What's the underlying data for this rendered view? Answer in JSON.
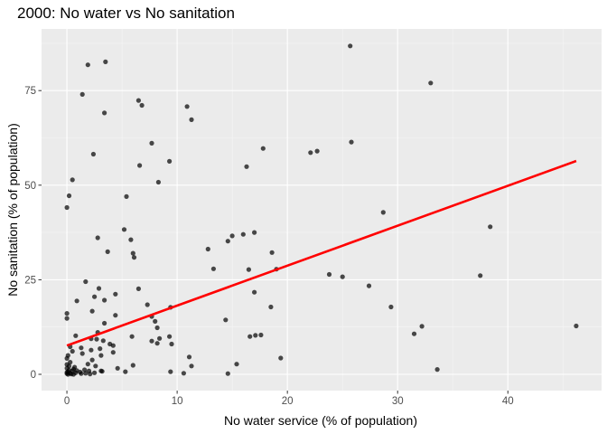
{
  "chart_data": {
    "type": "scatter",
    "title": "2000: No water vs No sanitation",
    "xlabel": "No water service (% of population)",
    "ylabel": "No sanitation (% of population)",
    "xlim": [
      -2.3,
      48.5
    ],
    "ylim": [
      -4.3,
      91.3
    ],
    "x_ticks": [
      0,
      10,
      20,
      30,
      40
    ],
    "x_tick_labels": [
      "0",
      "10",
      "20",
      "30",
      "40"
    ],
    "y_ticks": [
      0,
      25,
      50,
      75
    ],
    "y_tick_labels": [
      "0",
      "25",
      "50",
      "75"
    ],
    "grid": true,
    "legend": "none",
    "colors": {
      "panel": "#ebebeb",
      "grid_major": "#ffffff",
      "grid_minor": "#f5f5f5",
      "points": "#000000",
      "trend": "#ff0000"
    },
    "trend_line": {
      "x": [
        0,
        46.2
      ],
      "y": [
        7.6,
        56.4
      ]
    },
    "points": [
      [
        25.7,
        86.8
      ],
      [
        1.9,
        81.8
      ],
      [
        3.5,
        82.6
      ],
      [
        33.0,
        77.0
      ],
      [
        1.4,
        74.0
      ],
      [
        6.5,
        72.4
      ],
      [
        6.8,
        71.1
      ],
      [
        10.9,
        70.8
      ],
      [
        3.4,
        69.1
      ],
      [
        11.3,
        67.3
      ],
      [
        7.7,
        61.1
      ],
      [
        25.8,
        61.4
      ],
      [
        17.8,
        59.7
      ],
      [
        22.7,
        59.0
      ],
      [
        22.1,
        58.6
      ],
      [
        2.4,
        58.2
      ],
      [
        9.3,
        56.3
      ],
      [
        6.6,
        55.2
      ],
      [
        16.3,
        54.9
      ],
      [
        0.5,
        51.4
      ],
      [
        8.3,
        50.8
      ],
      [
        0.2,
        47.2
      ],
      [
        5.4,
        47.0
      ],
      [
        0.0,
        44.1
      ],
      [
        28.7,
        42.8
      ],
      [
        38.4,
        39.0
      ],
      [
        5.2,
        38.3
      ],
      [
        15.0,
        36.6
      ],
      [
        16.0,
        37.0
      ],
      [
        17.0,
        37.5
      ],
      [
        2.8,
        36.1
      ],
      [
        5.8,
        35.6
      ],
      [
        14.6,
        35.2
      ],
      [
        12.8,
        33.1
      ],
      [
        3.7,
        32.4
      ],
      [
        18.6,
        32.2
      ],
      [
        6.0,
        32.0
      ],
      [
        6.1,
        30.9
      ],
      [
        16.5,
        27.7
      ],
      [
        19.0,
        27.8
      ],
      [
        13.3,
        27.9
      ],
      [
        23.8,
        26.4
      ],
      [
        25.0,
        25.8
      ],
      [
        37.5,
        26.1
      ],
      [
        1.7,
        24.5
      ],
      [
        27.4,
        23.4
      ],
      [
        2.9,
        22.7
      ],
      [
        6.5,
        22.6
      ],
      [
        4.4,
        21.2
      ],
      [
        17.0,
        21.7
      ],
      [
        2.5,
        20.5
      ],
      [
        0.9,
        19.4
      ],
      [
        3.4,
        19.6
      ],
      [
        29.4,
        17.8
      ],
      [
        18.5,
        17.8
      ],
      [
        7.3,
        18.4
      ],
      [
        9.4,
        17.7
      ],
      [
        2.3,
        16.7
      ],
      [
        0.0,
        16.1
      ],
      [
        4.4,
        15.6
      ],
      [
        7.7,
        15.3
      ],
      [
        8.0,
        14.0
      ],
      [
        0.0,
        14.8
      ],
      [
        14.4,
        14.4
      ],
      [
        3.4,
        13.5
      ],
      [
        8.2,
        12.3
      ],
      [
        32.2,
        12.7
      ],
      [
        46.2,
        12.8
      ],
      [
        31.5,
        10.7
      ],
      [
        0.8,
        10.2
      ],
      [
        2.8,
        11.1
      ],
      [
        5.9,
        10.0
      ],
      [
        9.3,
        10.0
      ],
      [
        8.4,
        9.5
      ],
      [
        16.6,
        10.0
      ],
      [
        17.1,
        10.3
      ],
      [
        17.6,
        10.4
      ],
      [
        3.3,
        8.9
      ],
      [
        2.7,
        9.3
      ],
      [
        2.2,
        9.4
      ],
      [
        3.9,
        8.0
      ],
      [
        7.7,
        8.8
      ],
      [
        8.2,
        8.2
      ],
      [
        9.5,
        8.0
      ],
      [
        4.2,
        7.6
      ],
      [
        0.3,
        7.3
      ],
      [
        1.3,
        7.0
      ],
      [
        3.0,
        6.8
      ],
      [
        2.2,
        6.4
      ],
      [
        4.2,
        5.8
      ],
      [
        0.5,
        6.1
      ],
      [
        1.4,
        5.5
      ],
      [
        3.1,
        5.0
      ],
      [
        0.1,
        5.0
      ],
      [
        11.1,
        4.6
      ],
      [
        0.0,
        4.2
      ],
      [
        19.4,
        4.3
      ],
      [
        2.3,
        3.8
      ],
      [
        0.3,
        3.2
      ],
      [
        1.9,
        2.7
      ],
      [
        0.0,
        2.6
      ],
      [
        2.6,
        2.2
      ],
      [
        6.0,
        2.4
      ],
      [
        11.3,
        2.2
      ],
      [
        15.4,
        2.7
      ],
      [
        0.7,
        1.9
      ],
      [
        4.6,
        1.6
      ],
      [
        33.6,
        1.3
      ],
      [
        0.2,
        1.1
      ],
      [
        0.5,
        0.9
      ],
      [
        1.6,
        1.2
      ],
      [
        2.0,
        0.9
      ],
      [
        3.1,
        0.9
      ],
      [
        5.3,
        0.7
      ],
      [
        9.4,
        0.7
      ],
      [
        10.6,
        0.3
      ],
      [
        14.6,
        0.2
      ],
      [
        0.0,
        0.5
      ],
      [
        0.1,
        0.0
      ],
      [
        0.3,
        0.3
      ],
      [
        0.8,
        0.4
      ],
      [
        1.2,
        0.6
      ],
      [
        1.7,
        0.3
      ],
      [
        2.5,
        0.4
      ],
      [
        3.2,
        0.8
      ],
      [
        0.0,
        1.6
      ],
      [
        0.2,
        2.2
      ],
      [
        0.6,
        1.4
      ],
      [
        0.1,
        0.7
      ],
      [
        0.4,
        0.1
      ],
      [
        0.9,
        1.0
      ],
      [
        0.0,
        0.2
      ],
      [
        1.3,
        0.2
      ],
      [
        0.6,
        0.0
      ],
      [
        2.1,
        0.1
      ]
    ]
  }
}
